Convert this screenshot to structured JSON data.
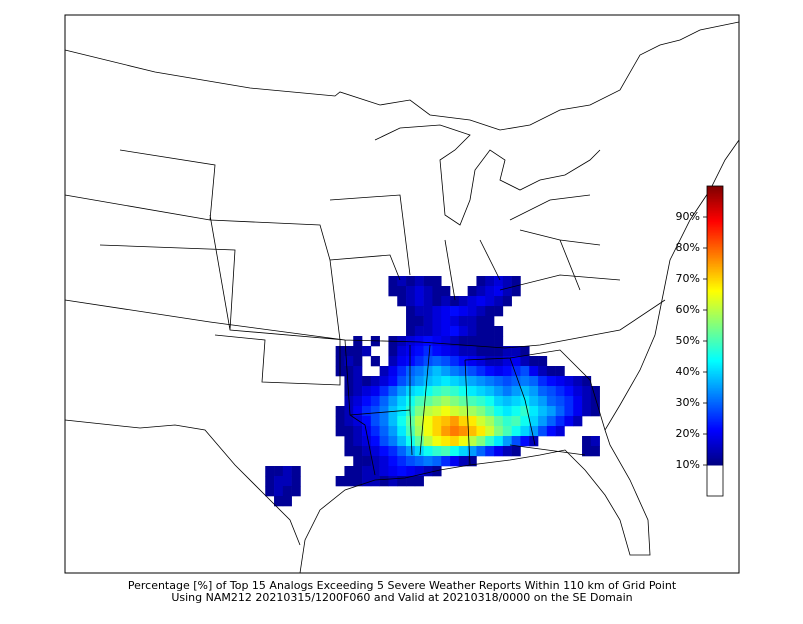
{
  "map": {
    "type": "heatmap",
    "caption": [
      "Percentage [%] of Top 15 Analogs Exceeding 5 Severe Weather Reports Within 110 km of Grid Point",
      "Using NAM212 20210315/1200F060 and Valid at 20210318/0000 on the SE Domain"
    ],
    "colormap": "jet",
    "color_range": [
      10,
      100
    ],
    "below_color": "#ffffff",
    "colorbar": {
      "lim": [
        0,
        100
      ],
      "ticks": [
        {
          "value": 10,
          "label": "10%"
        },
        {
          "value": 20,
          "label": "20%"
        },
        {
          "value": 30,
          "label": "30%"
        },
        {
          "value": 40,
          "label": "40%"
        },
        {
          "value": 50,
          "label": "50%"
        },
        {
          "value": 60,
          "label": "60%"
        },
        {
          "value": 70,
          "label": "70%"
        },
        {
          "value": 80,
          "label": "80%"
        },
        {
          "value": 90,
          "label": "90%"
        }
      ]
    },
    "rows": [
      {
        "lat": 39.5,
        "lon_start": -92.5,
        "values": [
          12,
          15,
          12,
          15,
          12,
          12,
          null,
          null,
          null,
          null,
          12,
          15,
          18,
          15,
          12
        ]
      },
      {
        "lat": 39,
        "lon_start": -92.5,
        "values": [
          12,
          12,
          15,
          18,
          15,
          12,
          12,
          null,
          null,
          12,
          15,
          18,
          20,
          15,
          12
        ]
      },
      {
        "lat": 38.5,
        "lon_start": -92,
        "values": [
          12,
          15,
          18,
          15,
          12,
          15,
          12,
          15,
          18,
          20,
          18,
          15,
          12
        ]
      },
      {
        "lat": 38,
        "lon_start": -91.5,
        "values": [
          12,
          15,
          15,
          18,
          20,
          22,
          20,
          18,
          15,
          12,
          12
        ]
      },
      {
        "lat": 37.5,
        "lon_start": -91.5,
        "values": [
          12,
          12,
          15,
          18,
          20,
          18,
          15,
          15,
          12,
          12
        ]
      },
      {
        "lat": 37,
        "lon_start": -91.5,
        "values": [
          12,
          15,
          15,
          18,
          20,
          22,
          18,
          15,
          12,
          12,
          12
        ]
      },
      {
        "lat": 36.5,
        "lon_start": -94.5,
        "values": [
          12,
          null,
          12,
          null,
          12,
          15,
          18,
          20,
          22,
          20,
          18,
          15,
          12,
          12,
          12,
          12,
          12
        ]
      },
      {
        "lat": 36,
        "lon_start": -95.5,
        "values": [
          12,
          12,
          12,
          15,
          null,
          null,
          12,
          18,
          20,
          22,
          25,
          22,
          20,
          18,
          15,
          15,
          12,
          12,
          12,
          15,
          15,
          12
        ]
      },
      {
        "lat": 35.5,
        "lon_start": -95.5,
        "values": [
          12,
          15,
          12,
          null,
          12,
          null,
          15,
          20,
          22,
          25,
          28,
          30,
          28,
          25,
          22,
          20,
          18,
          15,
          15,
          18,
          20,
          15,
          12,
          12
        ]
      },
      {
        "lat": 35,
        "lon_start": -95.5,
        "values": [
          12,
          12,
          15,
          null,
          null,
          15,
          20,
          25,
          30,
          32,
          35,
          38,
          35,
          32,
          30,
          28,
          25,
          22,
          20,
          22,
          25,
          28,
          20,
          15,
          12,
          12
        ]
      },
      {
        "lat": 34.5,
        "lon_start": -95,
        "values": [
          12,
          15,
          12,
          15,
          18,
          22,
          28,
          32,
          35,
          38,
          40,
          42,
          40,
          38,
          36,
          34,
          32,
          30,
          28,
          30,
          32,
          30,
          25,
          22,
          20,
          18,
          15,
          12
        ]
      },
      {
        "lat": 34,
        "lon_start": -95,
        "values": [
          12,
          15,
          18,
          20,
          25,
          30,
          35,
          40,
          42,
          45,
          48,
          50,
          48,
          45,
          42,
          40,
          38,
          35,
          32,
          35,
          38,
          35,
          30,
          28,
          25,
          22,
          18,
          15,
          12
        ]
      },
      {
        "lat": 33.5,
        "lon_start": -95,
        "values": [
          15,
          18,
          22,
          25,
          30,
          35,
          40,
          45,
          50,
          52,
          55,
          58,
          55,
          52,
          50,
          48,
          45,
          40,
          38,
          40,
          42,
          38,
          35,
          30,
          28,
          25,
          20,
          15,
          12
        ]
      },
      {
        "lat": 33,
        "lon_start": -95.5,
        "values": [
          12,
          15,
          20,
          25,
          28,
          32,
          38,
          42,
          48,
          55,
          60,
          62,
          65,
          62,
          60,
          58,
          55,
          50,
          45,
          42,
          45,
          48,
          42,
          38,
          35,
          30,
          25,
          20,
          15,
          12
        ]
      },
      {
        "lat": 32.5,
        "lon_start": -95.5,
        "values": [
          12,
          15,
          18,
          22,
          28,
          32,
          38,
          45,
          52,
          60,
          65,
          70,
          72,
          75,
          70,
          68,
          62,
          58,
          52,
          48,
          50,
          45,
          40,
          35,
          30,
          25,
          20,
          15
        ]
      },
      {
        "lat": 32,
        "lon_start": -95.5,
        "values": [
          12,
          12,
          15,
          20,
          25,
          30,
          35,
          42,
          50,
          58,
          65,
          70,
          75,
          78,
          76,
          72,
          68,
          62,
          55,
          50,
          45,
          40,
          35,
          28,
          22,
          18
        ]
      },
      {
        "lat": 31.5,
        "lon_start": -95,
        "values": [
          12,
          15,
          18,
          22,
          28,
          32,
          38,
          45,
          52,
          60,
          65,
          68,
          70,
          65,
          60,
          55,
          48,
          42,
          35,
          28,
          22,
          15
        ]
      },
      {
        "lat": 31,
        "lon_start": -95,
        "values": [
          12,
          12,
          15,
          18,
          22,
          25,
          30,
          35,
          40,
          45,
          48,
          50,
          45,
          40,
          35,
          30,
          25,
          20,
          15,
          12
        ]
      },
      {
        "lat": 30.5,
        "lon_start": -94.5,
        "values": [
          12,
          12,
          15,
          18,
          22,
          25,
          28,
          30,
          32,
          30,
          25,
          20,
          15,
          12
        ]
      },
      {
        "lat": 30,
        "lon_start": -95,
        "values": [
          12,
          12,
          15,
          15,
          18,
          20,
          22,
          20,
          18,
          15,
          12
        ]
      },
      {
        "lat": 29.5,
        "lon_start": -95.5,
        "values": [
          12,
          12,
          12,
          15,
          15,
          12,
          15,
          12,
          12,
          12
        ]
      },
      {
        "lat": 30,
        "lon_start": -99.5,
        "values": [
          12,
          12,
          15,
          12
        ]
      },
      {
        "lat": 29.5,
        "lon_start": -99.5,
        "values": [
          12,
          15,
          15,
          12
        ]
      },
      {
        "lat": 29,
        "lon_start": -99.5,
        "values": [
          12,
          15,
          12,
          12
        ]
      },
      {
        "lat": 28.5,
        "lon_start": -99.5,
        "values": [
          null,
          12,
          12
        ]
      },
      {
        "lat": 31.5,
        "lon_start": -81.5,
        "values": [
          12,
          15
        ]
      },
      {
        "lat": 31,
        "lon_start": -81.5,
        "values": [
          12,
          12
        ]
      }
    ]
  }
}
